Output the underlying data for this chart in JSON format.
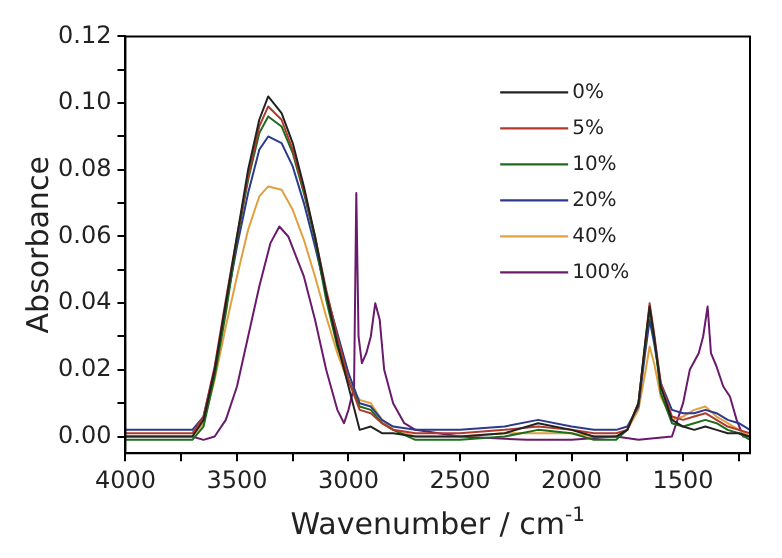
{
  "chart_data": {
    "type": "line",
    "xlabel": "Wavenumber / cm$^{-1}$",
    "ylabel": "Absorbance",
    "x": [
      4000,
      3800,
      3700,
      3650,
      3600,
      3550,
      3500,
      3450,
      3400,
      3360,
      3300,
      3250,
      3200,
      3150,
      3100,
      3050,
      3000,
      2950,
      2900,
      2850,
      2800,
      2700,
      2500,
      2300,
      2150,
      2000,
      1900,
      1800,
      1750,
      1700,
      1670,
      1650,
      1630,
      1600,
      1550,
      1500,
      1450,
      1400,
      1350,
      1300,
      1250,
      1200
    ],
    "series": [
      {
        "name": "0%",
        "color": "#222222",
        "values": [
          0,
          0,
          0,
          0.005,
          0.02,
          0.04,
          0.06,
          0.08,
          0.095,
          0.102,
          0.097,
          0.088,
          0.075,
          0.06,
          0.043,
          0.028,
          0.015,
          0.002,
          0.003,
          0.001,
          0.001,
          0,
          0,
          0.001,
          0.004,
          0.002,
          0,
          0,
          0.002,
          0.01,
          0.028,
          0.039,
          0.03,
          0.015,
          0.005,
          0.003,
          0.002,
          0.003,
          0.002,
          0.001,
          0.001,
          0
        ]
      },
      {
        "name": "5%",
        "color": "#b03a2e",
        "values": [
          0.001,
          0.001,
          0.001,
          0.006,
          0.021,
          0.041,
          0.06,
          0.078,
          0.093,
          0.099,
          0.095,
          0.086,
          0.074,
          0.06,
          0.044,
          0.03,
          0.017,
          0.008,
          0.007,
          0.004,
          0.002,
          0.001,
          0.001,
          0.002,
          0.003,
          0.002,
          0.001,
          0.001,
          0.002,
          0.01,
          0.028,
          0.04,
          0.031,
          0.016,
          0.006,
          0.005,
          0.006,
          0.007,
          0.005,
          0.003,
          0.002,
          0.001
        ]
      },
      {
        "name": "10%",
        "color": "#1e6b1e",
        "values": [
          -0.001,
          -0.001,
          -0.001,
          0.003,
          0.018,
          0.037,
          0.059,
          0.077,
          0.091,
          0.096,
          0.093,
          0.085,
          0.073,
          0.059,
          0.041,
          0.027,
          0.017,
          0.009,
          0.008,
          0.004,
          0.002,
          -0.001,
          -0.001,
          0,
          0.002,
          0.001,
          -0.001,
          -0.001,
          0.002,
          0.01,
          0.027,
          0.038,
          0.03,
          0.013,
          0.004,
          0.003,
          0.004,
          0.005,
          0.004,
          0.002,
          0.001,
          -0.001
        ]
      },
      {
        "name": "20%",
        "color": "#2b3a8c",
        "values": [
          0.002,
          0.002,
          0.002,
          0.006,
          0.02,
          0.039,
          0.057,
          0.073,
          0.086,
          0.09,
          0.088,
          0.081,
          0.07,
          0.057,
          0.043,
          0.031,
          0.019,
          0.01,
          0.009,
          0.005,
          0.003,
          0.002,
          0.002,
          0.003,
          0.005,
          0.003,
          0.002,
          0.002,
          0.003,
          0.009,
          0.025,
          0.035,
          0.028,
          0.016,
          0.008,
          0.007,
          0.007,
          0.008,
          0.007,
          0.005,
          0.004,
          0.002
        ]
      },
      {
        "name": "40%",
        "color": "#e0a040",
        "values": [
          0,
          0,
          0,
          0.004,
          0.017,
          0.033,
          0.048,
          0.062,
          0.072,
          0.075,
          0.074,
          0.068,
          0.059,
          0.048,
          0.036,
          0.025,
          0.016,
          0.011,
          0.01,
          0.005,
          0.002,
          0,
          0,
          0.001,
          0.001,
          0.001,
          0,
          0,
          0.002,
          0.008,
          0.019,
          0.027,
          0.022,
          0.012,
          0.005,
          0.006,
          0.008,
          0.009,
          0.006,
          0.004,
          0.002,
          0
        ]
      },
      {
        "name": "100%",
        "color": "#6a1a6a",
        "x": [
          4000,
          3700,
          3650,
          3600,
          3550,
          3500,
          3450,
          3400,
          3350,
          3310,
          3270,
          3200,
          3150,
          3100,
          3050,
          3020,
          3000,
          2975,
          2965,
          2955,
          2940,
          2920,
          2900,
          2880,
          2860,
          2840,
          2800,
          2750,
          2700,
          2500,
          2200,
          2000,
          1800,
          1700,
          1550,
          1500,
          1470,
          1430,
          1410,
          1390,
          1375,
          1350,
          1320,
          1290,
          1260,
          1230,
          1200
        ],
        "values": [
          0,
          0,
          -0.001,
          0,
          0.005,
          0.015,
          0.03,
          0.045,
          0.058,
          0.063,
          0.06,
          0.048,
          0.035,
          0.02,
          0.008,
          0.004,
          0.008,
          0.015,
          0.073,
          0.03,
          0.022,
          0.025,
          0.03,
          0.04,
          0.035,
          0.02,
          0.01,
          0.004,
          0.002,
          0,
          -0.001,
          -0.001,
          0,
          -0.001,
          0,
          0.01,
          0.02,
          0.025,
          0.03,
          0.039,
          0.025,
          0.021,
          0.015,
          0.012,
          0.005,
          0,
          0
        ]
      }
    ],
    "xlim": [
      4000,
      1200
    ],
    "xticks": [
      4000,
      {
        "value": 3750,
        "label": null
      },
      3500,
      {
        "value": 3250,
        "label": null
      },
      3000,
      {
        "value": 2750,
        "label": null
      },
      2500,
      {
        "value": 2250,
        "label": null
      },
      2000,
      {
        "value": 1750,
        "label": null
      },
      1500,
      {
        "value": 1250,
        "label": null
      }
    ],
    "ylim": [
      -0.005,
      0.12
    ],
    "yticks": [
      {
        "value": 0,
        "label": "0.00"
      },
      {
        "value": 0.01,
        "label": null
      },
      {
        "value": 0.02,
        "label": "0.02"
      },
      {
        "value": 0.03,
        "label": null
      },
      {
        "value": 0.04,
        "label": "0.04"
      },
      {
        "value": 0.05,
        "label": null
      },
      {
        "value": 0.06,
        "label": "0.06"
      },
      {
        "value": 0.07,
        "label": null
      },
      {
        "value": 0.08,
        "label": "0.08"
      },
      {
        "value": 0.09,
        "label": null
      },
      {
        "value": 0.1,
        "label": "0.10"
      },
      {
        "value": 0.11,
        "label": null
      },
      {
        "value": 0.12,
        "label": "0.12"
      }
    ],
    "grid": false,
    "legend": "top right",
    "marker": "none",
    "line_style": "solid"
  }
}
